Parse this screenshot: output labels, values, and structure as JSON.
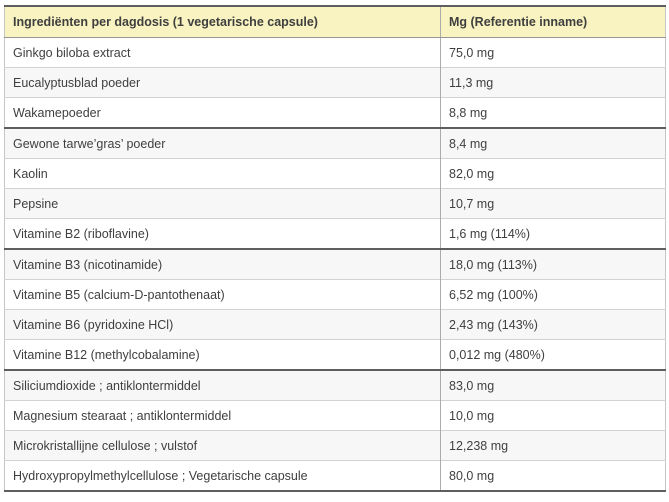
{
  "table": {
    "header": {
      "ingredient_col": "Ingrediënten per dagdosis (1 vegetarische capsule)",
      "amount_col": "Mg (Referentie inname)"
    },
    "rows": [
      {
        "ingredient": "Ginkgo biloba extract",
        "amount": "75,0 mg",
        "group_end": false
      },
      {
        "ingredient": "Eucalyptusblad poeder",
        "amount": "11,3 mg",
        "group_end": false
      },
      {
        "ingredient": "Wakamepoeder",
        "amount": "8,8 mg",
        "group_end": true
      },
      {
        "ingredient": "Gewone tarwe’gras’ poeder",
        "amount": "8,4 mg",
        "group_end": false
      },
      {
        "ingredient": "Kaolin",
        "amount": "82,0 mg",
        "group_end": false
      },
      {
        "ingredient": "Pepsine",
        "amount": "10,7 mg",
        "group_end": false
      },
      {
        "ingredient": "Vitamine B2 (riboflavine)",
        "amount": "1,6 mg (114%)",
        "group_end": true
      },
      {
        "ingredient": "Vitamine B3 (nicotinamide)",
        "amount": "18,0 mg (113%)",
        "group_end": false
      },
      {
        "ingredient": "Vitamine B5 (calcium-D-pantothenaat)",
        "amount": "6,52 mg (100%)",
        "group_end": false
      },
      {
        "ingredient": "Vitamine B6 (pyridoxine HCl)",
        "amount": "2,43 mg (143%)",
        "group_end": false
      },
      {
        "ingredient": "Vitamine B12 (methylcobalamine)",
        "amount": "0,012 mg (480%)",
        "group_end": true
      },
      {
        "ingredient": "Siliciumdioxide ; antiklontermiddel",
        "amount": "83,0 mg",
        "group_end": false
      },
      {
        "ingredient": "Magnesium stearaat ; antiklontermiddel",
        "amount": "10,0 mg",
        "group_end": false
      },
      {
        "ingredient": "Microkristallijne cellulose ; vulstof",
        "amount": "12,238 mg",
        "group_end": false
      },
      {
        "ingredient": "Hydroxypropylmethylcellulose ; Vegetarische capsule",
        "amount": "80,0 mg",
        "group_end": false
      }
    ],
    "colors": {
      "header_bg": "#f8f3c0",
      "row_bg": "#ffffff",
      "row_alt_bg": "#f7f7f7",
      "border_light": "#d2d2d2",
      "border_dark": "#5e5e5e",
      "text": "#3f3f3f"
    }
  }
}
